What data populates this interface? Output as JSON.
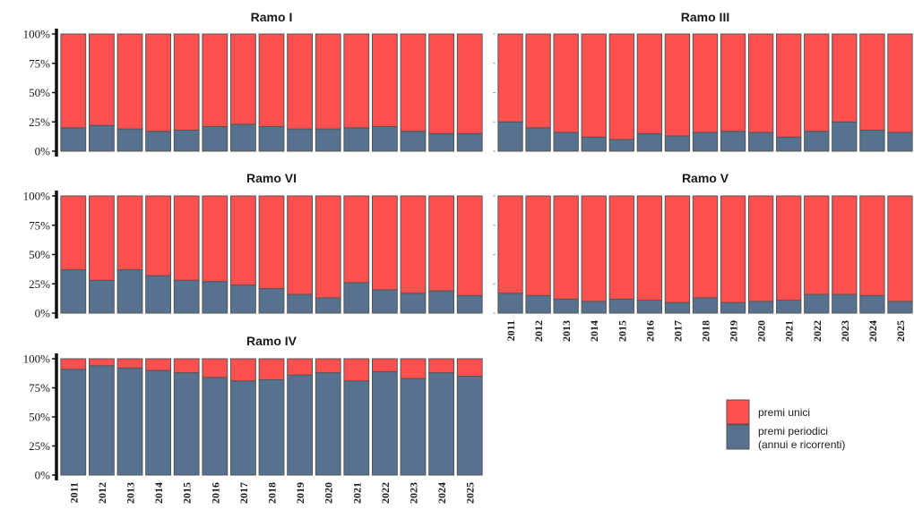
{
  "colors": {
    "premi_unici": "#ff5050",
    "premi_periodici": "#56728f",
    "bar_border": "#555555",
    "axis": "#111111"
  },
  "legend": {
    "items": [
      {
        "key": "premi_unici",
        "label": "premi unici"
      },
      {
        "key": "premi_periodici",
        "label_lines": [
          "premi periodici",
          "(annui e ricorrenti)"
        ]
      }
    ]
  },
  "chart_data": [
    {
      "type": "bar",
      "stacked": true,
      "normalized": true,
      "title": "Ramo I",
      "categories": [
        "2011",
        "2012",
        "2013",
        "2014",
        "2015",
        "2016",
        "2017",
        "2018",
        "2019",
        "2020",
        "2021",
        "2022",
        "2023",
        "2024",
        "2025"
      ],
      "yticks": [
        "0%",
        "25%",
        "50%",
        "75%",
        "100%"
      ],
      "ylim": [
        0,
        100
      ],
      "series": [
        {
          "name": "premi periodici (annui e ricorrenti)",
          "values": [
            20,
            22,
            19,
            17,
            18,
            21,
            23,
            21,
            19,
            19,
            20,
            21,
            17,
            15,
            15
          ]
        },
        {
          "name": "premi unici",
          "values": [
            80,
            78,
            81,
            83,
            82,
            79,
            77,
            79,
            81,
            81,
            80,
            79,
            83,
            85,
            85
          ]
        }
      ]
    },
    {
      "type": "bar",
      "stacked": true,
      "normalized": true,
      "title": "Ramo III",
      "categories": [
        "2011",
        "2012",
        "2013",
        "2014",
        "2015",
        "2016",
        "2017",
        "2018",
        "2019",
        "2020",
        "2021",
        "2022",
        "2023",
        "2024",
        "2025"
      ],
      "yticks": [
        "0%",
        "25%",
        "50%",
        "75%",
        "100%"
      ],
      "ylim": [
        0,
        100
      ],
      "series": [
        {
          "name": "premi periodici (annui e ricorrenti)",
          "values": [
            25,
            20,
            16,
            12,
            10,
            15,
            13,
            16,
            17,
            16,
            12,
            17,
            25,
            18,
            16
          ]
        },
        {
          "name": "premi unici",
          "values": [
            75,
            80,
            84,
            88,
            90,
            85,
            87,
            84,
            83,
            84,
            88,
            83,
            75,
            82,
            84
          ]
        }
      ]
    },
    {
      "type": "bar",
      "stacked": true,
      "normalized": true,
      "title": "Ramo VI",
      "categories": [
        "2011",
        "2012",
        "2013",
        "2014",
        "2015",
        "2016",
        "2017",
        "2018",
        "2019",
        "2020",
        "2021",
        "2022",
        "2023",
        "2024",
        "2025"
      ],
      "yticks": [
        "0%",
        "25%",
        "50%",
        "75%",
        "100%"
      ],
      "ylim": [
        0,
        100
      ],
      "series": [
        {
          "name": "premi periodici (annui e ricorrenti)",
          "values": [
            37,
            28,
            37,
            32,
            28,
            27,
            24,
            21,
            16,
            13,
            26,
            20,
            17,
            19,
            15
          ]
        },
        {
          "name": "premi unici",
          "values": [
            63,
            72,
            63,
            68,
            72,
            73,
            76,
            79,
            84,
            87,
            74,
            80,
            83,
            81,
            85
          ]
        }
      ]
    },
    {
      "type": "bar",
      "stacked": true,
      "normalized": true,
      "title": "Ramo V",
      "categories": [
        "2011",
        "2012",
        "2013",
        "2014",
        "2015",
        "2016",
        "2017",
        "2018",
        "2019",
        "2020",
        "2021",
        "2022",
        "2023",
        "2024",
        "2025"
      ],
      "yticks": [
        "0%",
        "25%",
        "50%",
        "75%",
        "100%"
      ],
      "ylim": [
        0,
        100
      ],
      "series": [
        {
          "name": "premi periodici (annui e ricorrenti)",
          "values": [
            17,
            15,
            12,
            10,
            12,
            11,
            9,
            13,
            9,
            10,
            11,
            16,
            16,
            15,
            10
          ]
        },
        {
          "name": "premi unici",
          "values": [
            83,
            85,
            88,
            90,
            88,
            89,
            91,
            87,
            91,
            90,
            89,
            84,
            84,
            85,
            90
          ]
        }
      ]
    },
    {
      "type": "bar",
      "stacked": true,
      "normalized": true,
      "title": "Ramo IV",
      "categories": [
        "2011",
        "2012",
        "2013",
        "2014",
        "2015",
        "2016",
        "2017",
        "2018",
        "2019",
        "2020",
        "2021",
        "2022",
        "2023",
        "2024",
        "2025"
      ],
      "yticks": [
        "0%",
        "25%",
        "50%",
        "75%",
        "100%"
      ],
      "ylim": [
        0,
        100
      ],
      "series": [
        {
          "name": "premi periodici (annui e ricorrenti)",
          "values": [
            91,
            94,
            92,
            90,
            88,
            84,
            81,
            82,
            86,
            88,
            81,
            89,
            83,
            88,
            85
          ]
        },
        {
          "name": "premi unici",
          "values": [
            9,
            6,
            8,
            10,
            12,
            16,
            19,
            18,
            14,
            12,
            19,
            11,
            17,
            12,
            15
          ]
        }
      ]
    }
  ]
}
